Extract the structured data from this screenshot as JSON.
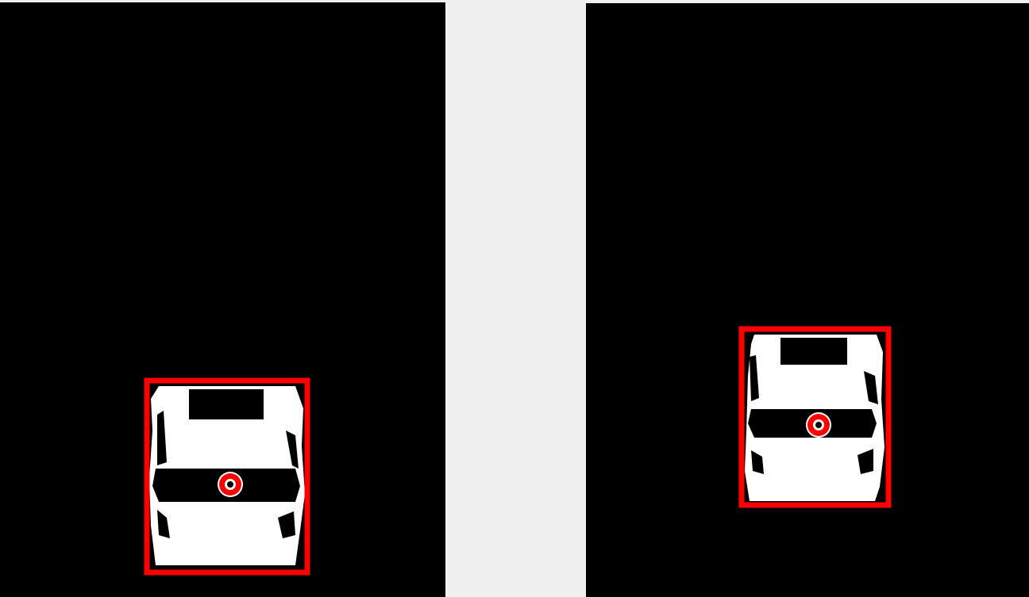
{
  "background_color": "#f0f0f0",
  "panel_color": "#000000",
  "blob_color": "#ffffff",
  "box_color": "#ff0000",
  "panels": [
    {
      "name": "left-mask-frame",
      "marker": "centroid-marker"
    },
    {
      "name": "right-mask-frame",
      "marker": "centroid-marker"
    }
  ]
}
